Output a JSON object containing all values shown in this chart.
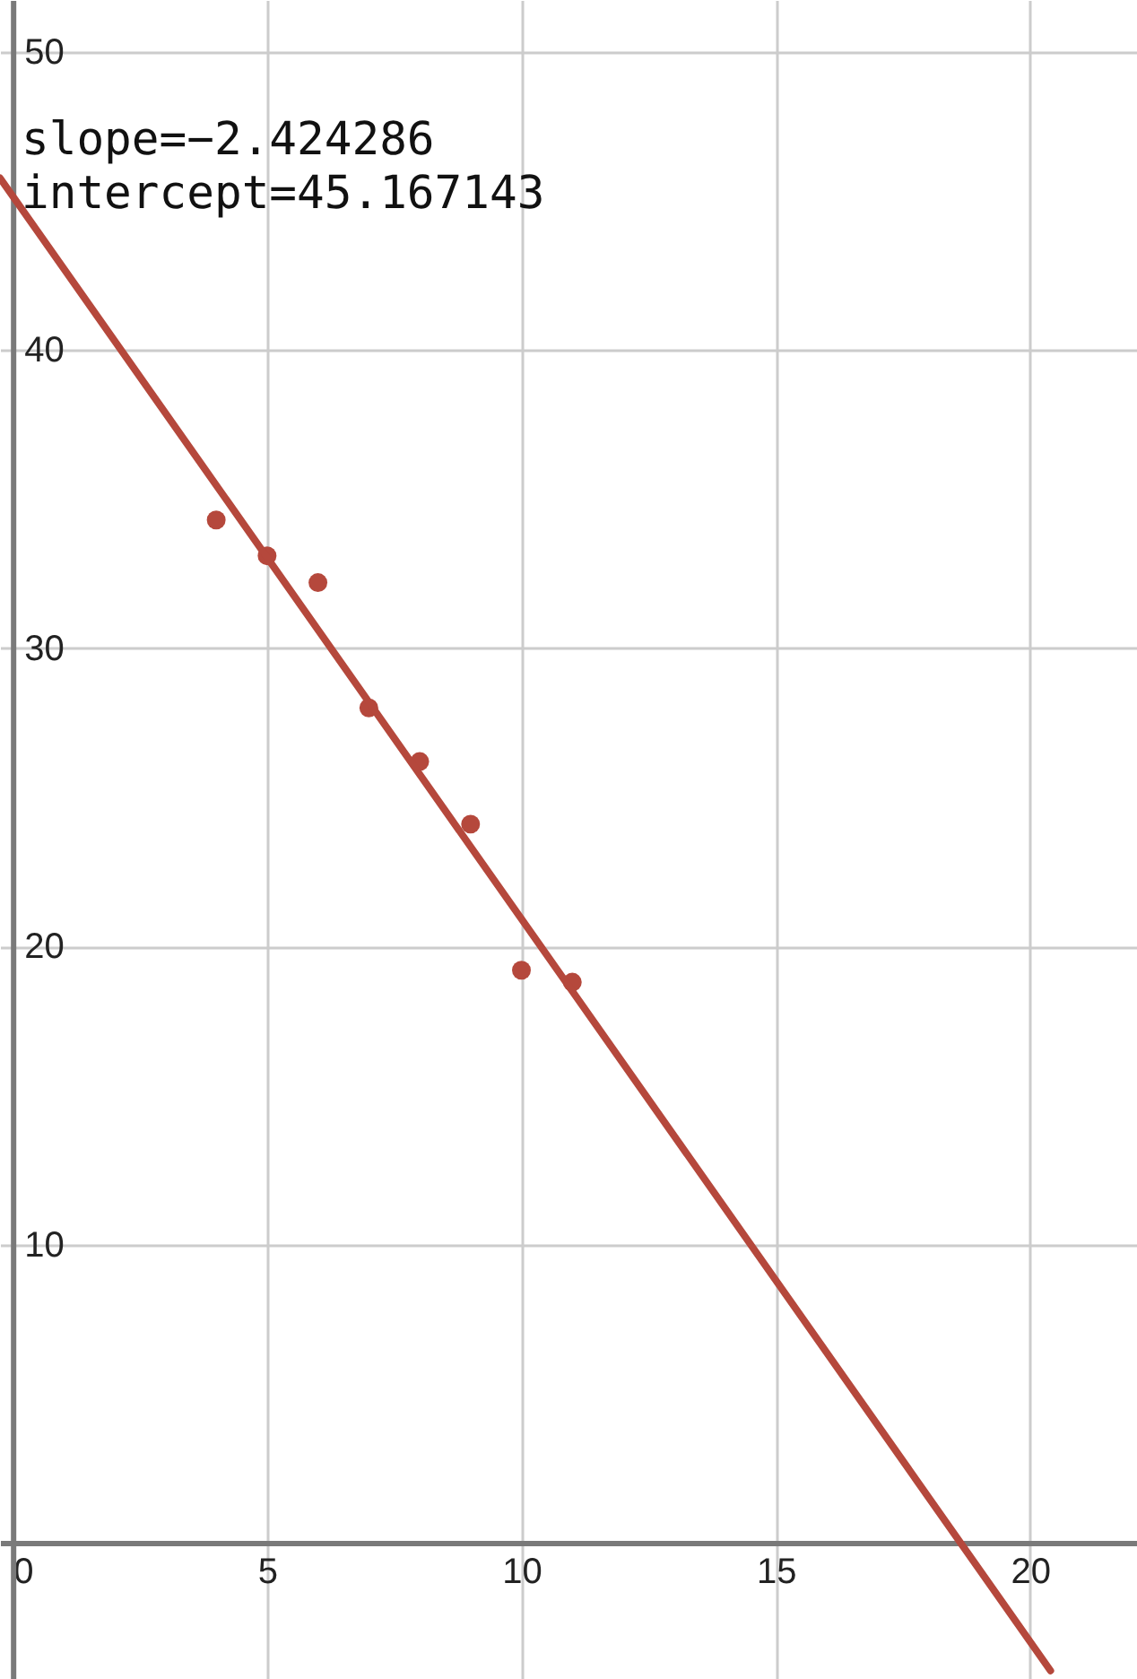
{
  "chart_data": {
    "type": "scatter",
    "annotations": [
      "slope=−2.424286",
      "intercept=45.167143"
    ],
    "series": [
      {
        "type": "scatter",
        "color": "#b5483c",
        "marker": "circle",
        "x": [
          4,
          5,
          6,
          7,
          8,
          9,
          10,
          11
        ],
        "values": [
          34.3,
          33.1,
          32.2,
          28,
          26.2,
          24.1,
          19.2,
          18.8
        ]
      },
      {
        "type": "line",
        "color": "#b5483c",
        "x": [
          -0.25,
          20.4
        ],
        "values": [
          45.77,
          -4.29
        ]
      }
    ],
    "xlim": [
      -0.25,
      22.1
    ],
    "ylim": [
      -4.57,
      51.74
    ],
    "xticks": [
      0,
      5,
      10,
      15,
      20
    ],
    "yticks": [
      10,
      20,
      30,
      40,
      50
    ],
    "grid": true
  }
}
